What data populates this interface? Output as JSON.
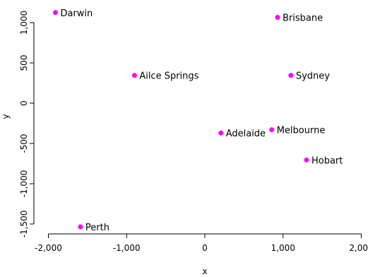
{
  "chart_data": {
    "type": "scatter",
    "title": "",
    "xlabel": "x",
    "ylabel": "y",
    "xlim": [
      -2000,
      2000
    ],
    "ylim": [
      -1500,
      1000
    ],
    "x_ticks": [
      -2000,
      -1000,
      0,
      1000,
      2000
    ],
    "x_tick_labels": [
      "-2,000",
      "-1,000",
      "0",
      "1,000",
      "2,000"
    ],
    "y_ticks": [
      -1500,
      -1000,
      -500,
      0,
      500,
      1000
    ],
    "y_tick_labels": [
      "-1,500",
      "-1,000",
      "-500",
      "0",
      "500",
      "1,000"
    ],
    "grid": false,
    "point_color": "#ff00ff",
    "points": [
      {
        "label": "Darwin",
        "x": -1910,
        "y": 1125
      },
      {
        "label": "Brisbane",
        "x": 930,
        "y": 1065
      },
      {
        "label": "Ailce Springs",
        "x": -900,
        "y": 345
      },
      {
        "label": "Sydney",
        "x": 1100,
        "y": 345
      },
      {
        "label": "Adelaide",
        "x": 205,
        "y": -370
      },
      {
        "label": "Melbourne",
        "x": 855,
        "y": -330
      },
      {
        "label": "Hobart",
        "x": 1300,
        "y": -705
      },
      {
        "label": "Perth",
        "x": -1590,
        "y": -1535
      }
    ]
  }
}
